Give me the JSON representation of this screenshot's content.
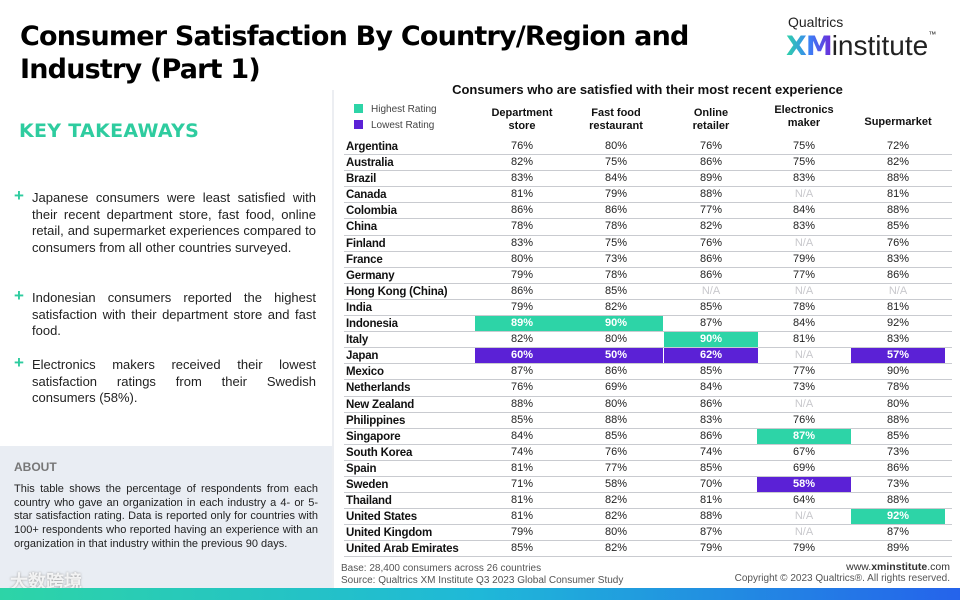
{
  "header": {
    "title": "Consumer Satisfaction By Country/Region and Industry (Part 1)"
  },
  "logo": {
    "brand": "Qualtrics",
    "xm": "XM",
    "institute": "institute",
    "tm": "™"
  },
  "takeaways": {
    "heading": "KEY TAKEAWAYS",
    "items": [
      "Japanese consumers were least satisfied with their recent department store, fast food, online retail, and supermarket experiences compared to consumers from all other countries surveyed.",
      "Indonesian consumers reported the highest satisfaction with their department store and fast food.",
      "Electronics makers received their lowest satisfaction ratings from their Swedish consumers (58%)."
    ]
  },
  "about": {
    "heading": "ABOUT",
    "text": "This table shows the percentage of respondents from each country who gave an organization in each industry a 4- or 5-star satisfaction rating. Data is reported only for countries with 100+ respondents who reported having an experience with an organization in that industry within the previous 90 days."
  },
  "watermark": "大数跨境",
  "colors": {
    "highest": "#2dd4a7",
    "lowest": "#5b21d6",
    "accent": "#2ecc9f"
  },
  "table": {
    "title": "Consumers who are satisfied with their most recent experience",
    "legend": {
      "highest": "Highest Rating",
      "lowest": "Lowest Rating"
    },
    "columns": [
      "Department store",
      "Fast food restaurant",
      "Online retailer",
      "Electronics maker",
      "Supermarket"
    ],
    "rows": [
      {
        "country": "Argentina",
        "values": [
          "76%",
          "80%",
          "76%",
          "75%",
          "72%"
        ]
      },
      {
        "country": "Australia",
        "values": [
          "82%",
          "75%",
          "86%",
          "75%",
          "82%"
        ]
      },
      {
        "country": "Brazil",
        "values": [
          "83%",
          "84%",
          "89%",
          "83%",
          "88%"
        ]
      },
      {
        "country": "Canada",
        "values": [
          "81%",
          "79%",
          "88%",
          "N/A",
          "81%"
        ]
      },
      {
        "country": "Colombia",
        "values": [
          "86%",
          "86%",
          "77%",
          "84%",
          "88%"
        ]
      },
      {
        "country": "China",
        "values": [
          "78%",
          "78%",
          "82%",
          "83%",
          "85%"
        ]
      },
      {
        "country": "Finland",
        "values": [
          "83%",
          "75%",
          "76%",
          "N/A",
          "76%"
        ]
      },
      {
        "country": "France",
        "values": [
          "80%",
          "73%",
          "86%",
          "79%",
          "83%"
        ]
      },
      {
        "country": "Germany",
        "values": [
          "79%",
          "78%",
          "86%",
          "77%",
          "86%"
        ]
      },
      {
        "country": "Hong Kong (China)",
        "values": [
          "86%",
          "85%",
          "N/A",
          "N/A",
          "N/A"
        ]
      },
      {
        "country": "India",
        "values": [
          "79%",
          "82%",
          "85%",
          "78%",
          "81%"
        ]
      },
      {
        "country": "Indonesia",
        "values": [
          "89%",
          "90%",
          "87%",
          "84%",
          "92%"
        ],
        "highlight": [
          "h",
          "h",
          "",
          "",
          ""
        ]
      },
      {
        "country": "Italy",
        "values": [
          "82%",
          "80%",
          "90%",
          "81%",
          "83%"
        ],
        "highlight": [
          "",
          "",
          "h",
          "",
          ""
        ]
      },
      {
        "country": "Japan",
        "values": [
          "60%",
          "50%",
          "62%",
          "N/A",
          "57%"
        ],
        "highlight": [
          "l",
          "l",
          "l",
          "",
          "l"
        ]
      },
      {
        "country": "Mexico",
        "values": [
          "87%",
          "86%",
          "85%",
          "77%",
          "90%"
        ]
      },
      {
        "country": "Netherlands",
        "values": [
          "76%",
          "69%",
          "84%",
          "73%",
          "78%"
        ]
      },
      {
        "country": "New Zealand",
        "values": [
          "88%",
          "80%",
          "86%",
          "N/A",
          "80%"
        ]
      },
      {
        "country": "Philippines",
        "values": [
          "85%",
          "88%",
          "83%",
          "76%",
          "88%"
        ]
      },
      {
        "country": "Singapore",
        "values": [
          "84%",
          "85%",
          "86%",
          "87%",
          "85%"
        ],
        "highlight": [
          "",
          "",
          "",
          "h",
          ""
        ]
      },
      {
        "country": "South Korea",
        "values": [
          "74%",
          "76%",
          "74%",
          "67%",
          "73%"
        ]
      },
      {
        "country": "Spain",
        "values": [
          "81%",
          "77%",
          "85%",
          "69%",
          "86%"
        ]
      },
      {
        "country": "Sweden",
        "values": [
          "71%",
          "58%",
          "70%",
          "58%",
          "73%"
        ],
        "highlight": [
          "",
          "",
          "",
          "l",
          ""
        ]
      },
      {
        "country": "Thailand",
        "values": [
          "81%",
          "82%",
          "81%",
          "64%",
          "88%"
        ]
      },
      {
        "country": "United States",
        "values": [
          "81%",
          "82%",
          "88%",
          "N/A",
          "92%"
        ],
        "highlight": [
          "",
          "",
          "",
          "",
          "h"
        ]
      },
      {
        "country": "United Kingdom",
        "values": [
          "79%",
          "80%",
          "87%",
          "N/A",
          "87%"
        ]
      },
      {
        "country": "United Arab Emirates",
        "values": [
          "85%",
          "82%",
          "79%",
          "79%",
          "89%"
        ]
      }
    ]
  },
  "footer": {
    "base": "Base: 28,400 consumers across 26 countries",
    "source": "Source: Qualtrics XM Institute Q3 2023 Global Consumer Study",
    "url_pre": "www.",
    "url_bold": "xminstitute",
    "url_post": ".com",
    "copyright": "Copyright © 2023 Qualtrics®. All rights reserved."
  }
}
